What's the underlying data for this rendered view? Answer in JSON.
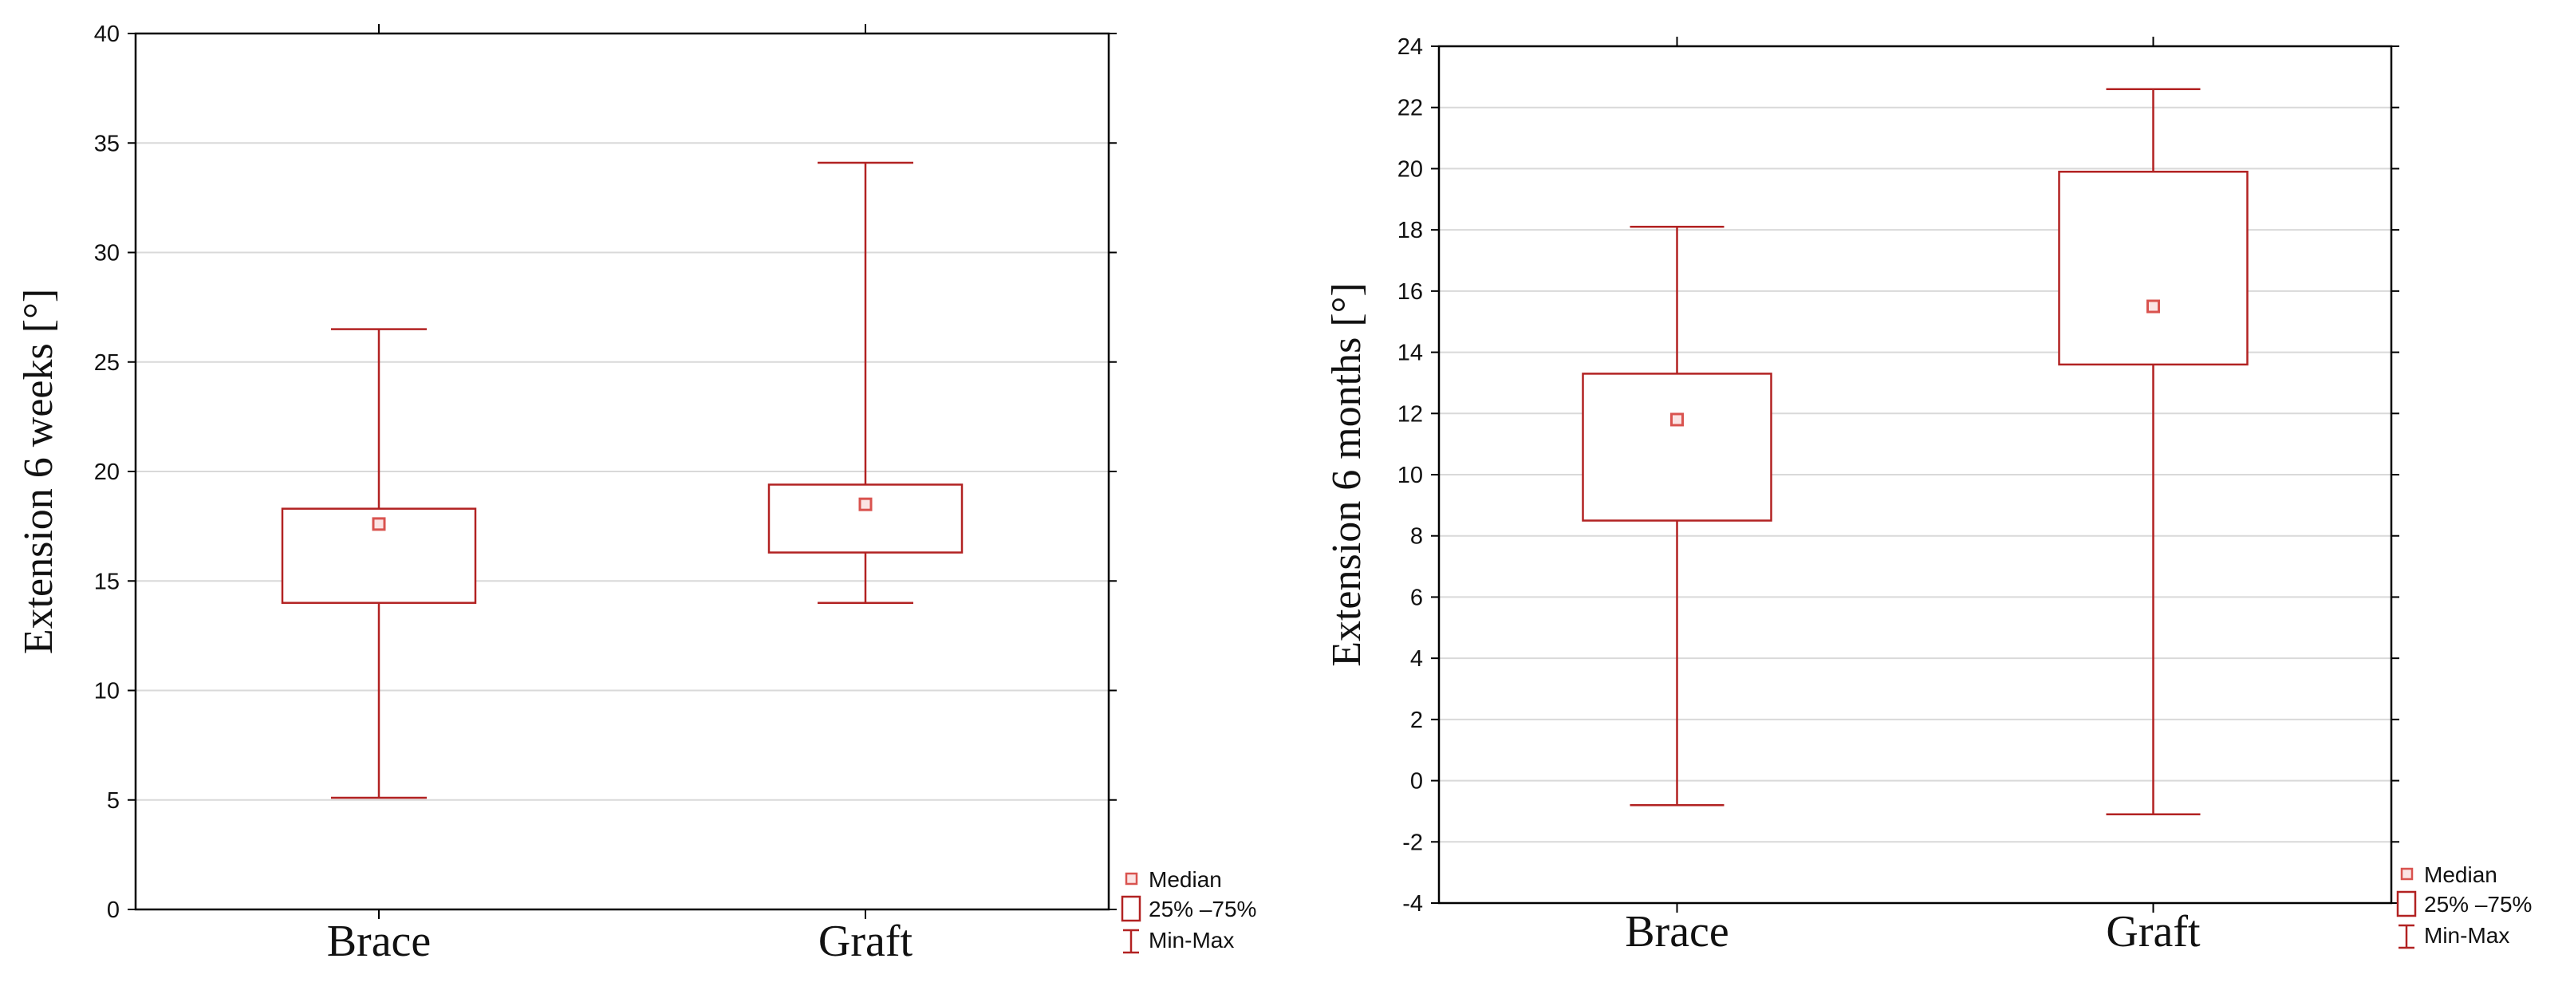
{
  "chart_data": [
    {
      "type": "box",
      "ylabel": "Extension 6 weeks [°]",
      "ylim": [
        0,
        40
      ],
      "yticks": [
        0,
        5,
        10,
        15,
        20,
        25,
        30,
        35,
        40
      ],
      "grid": true,
      "categories": [
        "Brace",
        "Graft"
      ],
      "boxes": [
        {
          "min": 5.1,
          "q1": 14.0,
          "median": 17.6,
          "q3": 18.3,
          "max": 26.5
        },
        {
          "min": 14.0,
          "q1": 16.3,
          "median": 18.5,
          "q3": 19.4,
          "max": 34.1
        }
      ],
      "legend": {
        "position": "bottom-right",
        "items": [
          "Median",
          "25% –75%",
          "Min-Max"
        ]
      },
      "colors": {
        "box": "#b22222",
        "median": "#d9534f",
        "grid": "#d9d9d9"
      }
    },
    {
      "type": "box",
      "ylabel": "Extension 6 months [°]",
      "ylim": [
        -4,
        24
      ],
      "yticks": [
        -4,
        -2,
        0,
        2,
        4,
        6,
        8,
        10,
        12,
        14,
        16,
        18,
        20,
        22,
        24
      ],
      "grid": true,
      "categories": [
        "Brace",
        "Graft"
      ],
      "boxes": [
        {
          "min": -0.8,
          "q1": 8.5,
          "median": 11.8,
          "q3": 13.3,
          "max": 18.1
        },
        {
          "min": -1.1,
          "q1": 13.6,
          "median": 15.5,
          "q3": 19.9,
          "max": 22.6
        }
      ],
      "legend": {
        "position": "bottom-right",
        "items": [
          "Median",
          "25% –75%",
          "Min-Max"
        ]
      },
      "colors": {
        "box": "#b22222",
        "median": "#d9534f",
        "grid": "#d9d9d9"
      }
    }
  ]
}
